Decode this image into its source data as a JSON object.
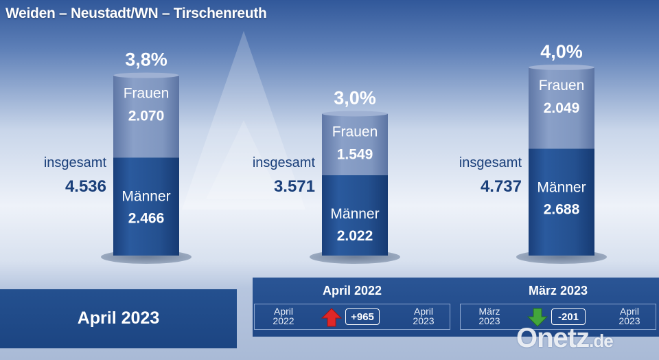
{
  "title": "Weiden – Neustadt/WN – Tirschenreuth",
  "colors": {
    "maenner": "#1f4f8f",
    "frauen": "#7f95bf",
    "up_arrow": "#e02727",
    "down_arrow": "#43a63b",
    "text_dark": "#1a3f7a"
  },
  "chart_data": {
    "type": "bar",
    "stacked": true,
    "categories": [
      "April 2023",
      "April 2022",
      "März 2023"
    ],
    "series": [
      {
        "name": "Männer",
        "values": [
          2466,
          2022,
          2688
        ]
      },
      {
        "name": "Frauen",
        "values": [
          2070,
          1549,
          2049
        ]
      }
    ],
    "totals": [
      4536,
      3571,
      4737
    ],
    "quotes": [
      "3,8%",
      "3,0%",
      "4,0%"
    ],
    "labels": {
      "total": "insgesamt",
      "maenner": "Männer",
      "frauen": "Frauen"
    },
    "display": {
      "totals": [
        "4.536",
        "3.571",
        "4.737"
      ],
      "maenner": [
        "2.466",
        "2.022",
        "2.688"
      ],
      "frauen": [
        "2.070",
        "1.549",
        "2.049"
      ]
    },
    "ylim": [
      0,
      4737
    ]
  },
  "footer": {
    "current_label": "April 2023",
    "comparisons": [
      {
        "head": "April 2022",
        "from": [
          "April",
          "2022"
        ],
        "to": [
          "April",
          "2023"
        ],
        "delta": "+965",
        "direction": "up",
        "arrow_icon": "arrow-up-icon"
      },
      {
        "head": "März 2023",
        "from": [
          "März",
          "2023"
        ],
        "to": [
          "April",
          "2023"
        ],
        "delta": "-201",
        "direction": "down",
        "arrow_icon": "arrow-down-icon"
      }
    ]
  },
  "watermark": {
    "main": "Onetz",
    "tld": ".de"
  }
}
